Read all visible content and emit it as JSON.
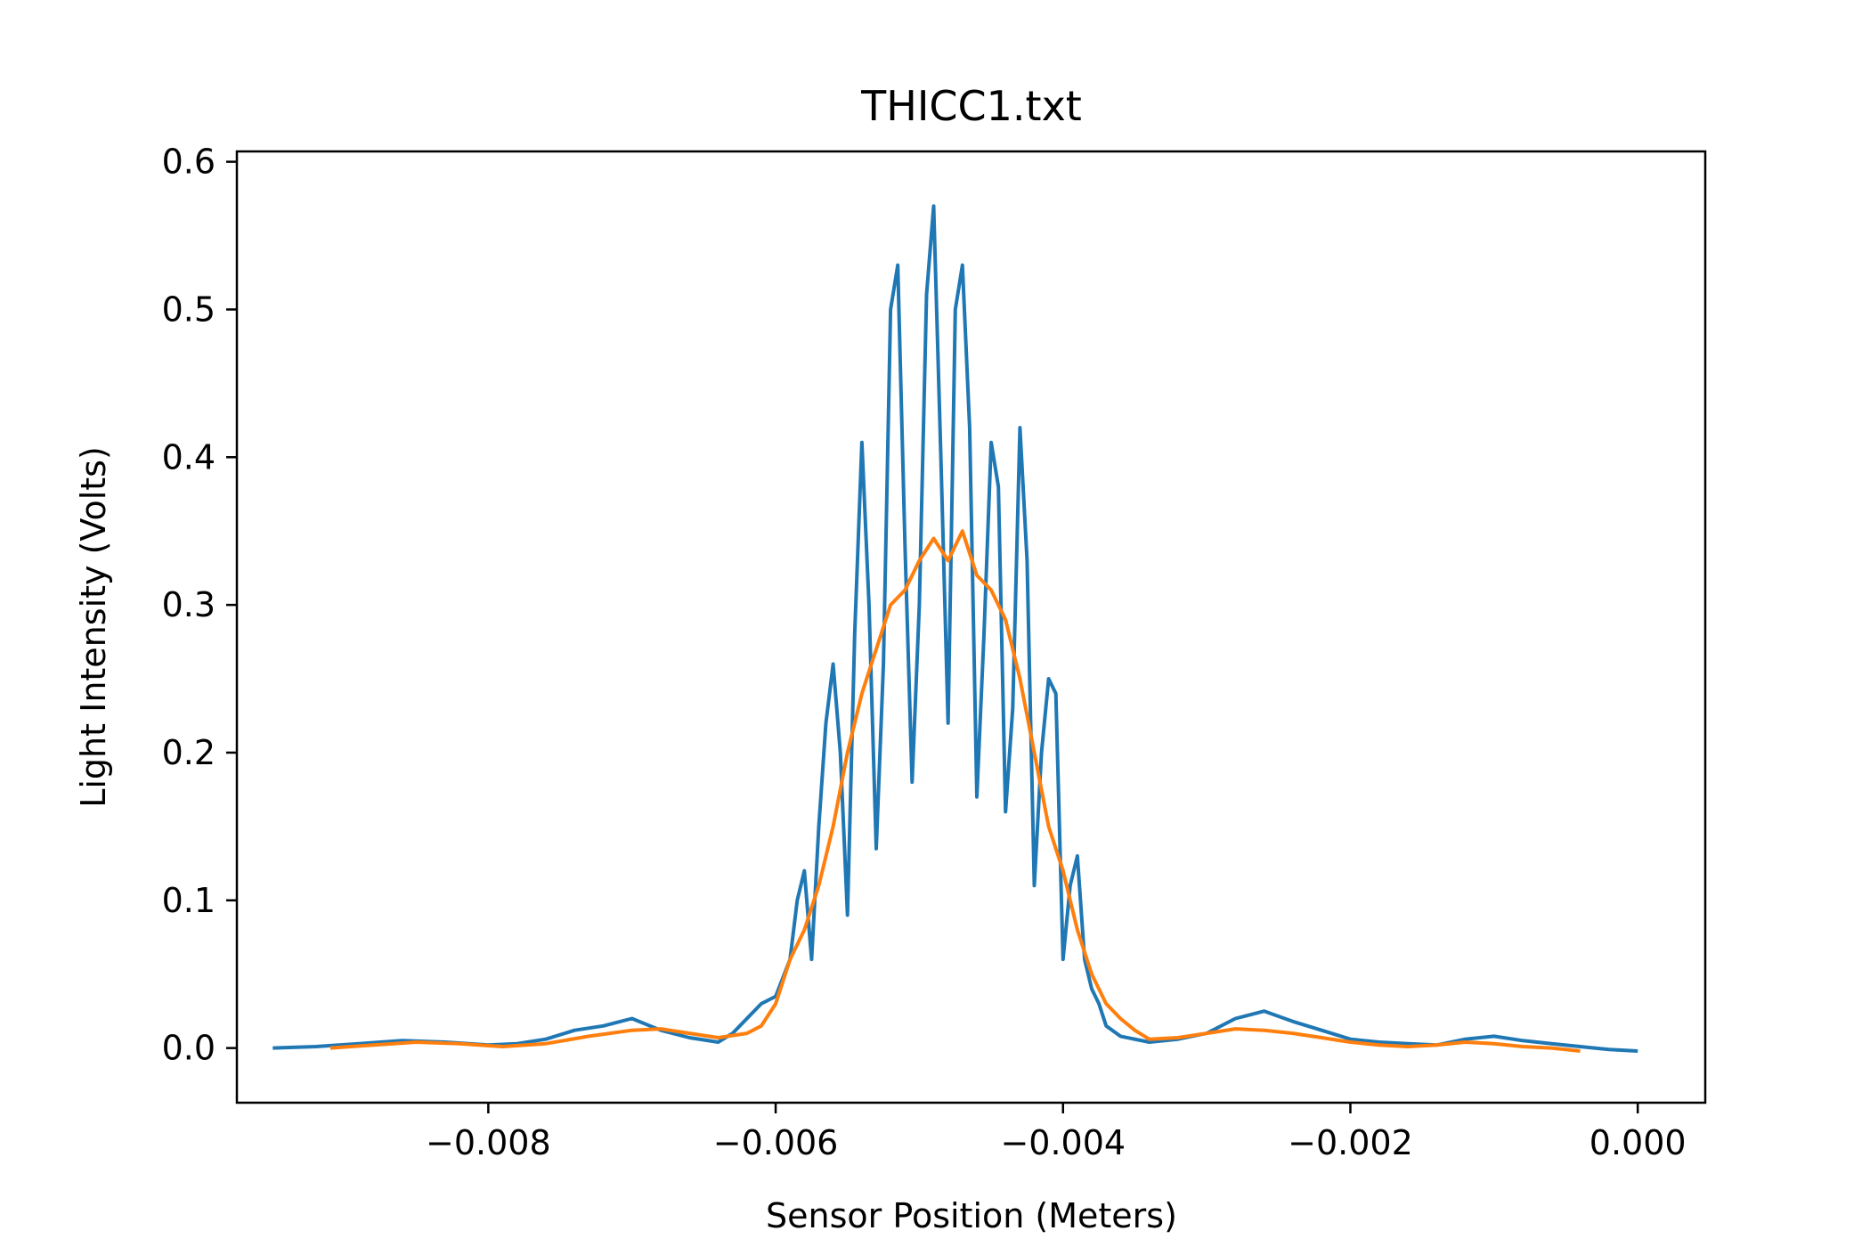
{
  "chart_data": {
    "type": "line",
    "title": "THICC1.txt",
    "xlabel": "Sensor Position (Meters)",
    "ylabel": "Light Intensity (Volts)",
    "xlim": [
      -0.00975,
      0.00047
    ],
    "ylim": [
      -0.037,
      0.607
    ],
    "x_ticks": [
      -0.008,
      -0.006,
      -0.004,
      -0.002,
      0.0
    ],
    "x_tick_labels": [
      "−0.008",
      "−0.006",
      "−0.004",
      "−0.002",
      "0.000"
    ],
    "y_ticks": [
      0.0,
      0.1,
      0.2,
      0.3,
      0.4,
      0.5,
      0.6
    ],
    "y_tick_labels": [
      "0.0",
      "0.1",
      "0.2",
      "0.3",
      "0.4",
      "0.5",
      "0.6"
    ],
    "grid": false,
    "legend": "none",
    "series": [
      {
        "color": "#1f77b4",
        "x": [
          -0.0095,
          -0.0092,
          -0.0089,
          -0.0086,
          -0.0083,
          -0.008,
          -0.0078,
          -0.0076,
          -0.0074,
          -0.0072,
          -0.007,
          -0.0068,
          -0.0066,
          -0.0064,
          -0.0063,
          -0.0062,
          -0.0061,
          -0.006,
          -0.0059,
          -0.00585,
          -0.0058,
          -0.00575,
          -0.0057,
          -0.00565,
          -0.0056,
          -0.00555,
          -0.0055,
          -0.00545,
          -0.0054,
          -0.00535,
          -0.0053,
          -0.00525,
          -0.0052,
          -0.00515,
          -0.0051,
          -0.00505,
          -0.005,
          -0.00495,
          -0.0049,
          -0.00485,
          -0.0048,
          -0.00475,
          -0.0047,
          -0.00465,
          -0.0046,
          -0.00455,
          -0.0045,
          -0.00445,
          -0.0044,
          -0.00435,
          -0.0043,
          -0.00425,
          -0.0042,
          -0.00415,
          -0.0041,
          -0.00405,
          -0.004,
          -0.00395,
          -0.0039,
          -0.00385,
          -0.0038,
          -0.00375,
          -0.0037,
          -0.0036,
          -0.0034,
          -0.0032,
          -0.003,
          -0.0028,
          -0.0026,
          -0.0024,
          -0.0022,
          -0.002,
          -0.0018,
          -0.0016,
          -0.0014,
          -0.0012,
          -0.001,
          -0.0008,
          -0.0006,
          -0.0004,
          -0.0002,
          0.0
        ],
        "y": [
          0.0,
          0.001,
          0.003,
          0.005,
          0.004,
          0.002,
          0.003,
          0.006,
          0.012,
          0.015,
          0.02,
          0.012,
          0.007,
          0.004,
          0.01,
          0.02,
          0.03,
          0.035,
          0.06,
          0.1,
          0.12,
          0.06,
          0.15,
          0.22,
          0.26,
          0.2,
          0.09,
          0.28,
          0.41,
          0.3,
          0.135,
          0.26,
          0.5,
          0.53,
          0.34,
          0.18,
          0.3,
          0.51,
          0.57,
          0.4,
          0.22,
          0.5,
          0.53,
          0.42,
          0.17,
          0.28,
          0.41,
          0.38,
          0.16,
          0.23,
          0.42,
          0.33,
          0.11,
          0.2,
          0.25,
          0.24,
          0.06,
          0.11,
          0.13,
          0.06,
          0.04,
          0.03,
          0.015,
          0.008,
          0.004,
          0.006,
          0.01,
          0.02,
          0.025,
          0.018,
          0.012,
          0.006,
          0.004,
          0.003,
          0.002,
          0.006,
          0.008,
          0.005,
          0.003,
          0.001,
          -0.001,
          -0.002
        ]
      },
      {
        "color": "#ff7f0e",
        "x": [
          -0.0091,
          -0.0088,
          -0.0085,
          -0.0082,
          -0.0079,
          -0.0076,
          -0.0073,
          -0.007,
          -0.0068,
          -0.0066,
          -0.0064,
          -0.0062,
          -0.0061,
          -0.006,
          -0.0059,
          -0.0058,
          -0.0057,
          -0.0056,
          -0.0055,
          -0.0054,
          -0.0053,
          -0.0052,
          -0.0051,
          -0.005,
          -0.0049,
          -0.0048,
          -0.0047,
          -0.0046,
          -0.0045,
          -0.0044,
          -0.0043,
          -0.0042,
          -0.0041,
          -0.004,
          -0.0039,
          -0.0038,
          -0.0037,
          -0.0036,
          -0.0035,
          -0.0034,
          -0.0032,
          -0.003,
          -0.0028,
          -0.0026,
          -0.0024,
          -0.0022,
          -0.002,
          -0.0018,
          -0.0016,
          -0.0014,
          -0.0012,
          -0.001,
          -0.0008,
          -0.0006,
          -0.0004
        ],
        "y": [
          0.0,
          0.002,
          0.004,
          0.003,
          0.001,
          0.003,
          0.008,
          0.012,
          0.013,
          0.01,
          0.007,
          0.01,
          0.015,
          0.03,
          0.06,
          0.08,
          0.11,
          0.15,
          0.2,
          0.24,
          0.27,
          0.3,
          0.31,
          0.33,
          0.345,
          0.33,
          0.35,
          0.32,
          0.31,
          0.29,
          0.25,
          0.2,
          0.15,
          0.12,
          0.08,
          0.05,
          0.03,
          0.02,
          0.012,
          0.006,
          0.007,
          0.01,
          0.013,
          0.012,
          0.01,
          0.007,
          0.004,
          0.002,
          0.001,
          0.002,
          0.004,
          0.003,
          0.001,
          0.0,
          -0.002
        ]
      }
    ]
  }
}
